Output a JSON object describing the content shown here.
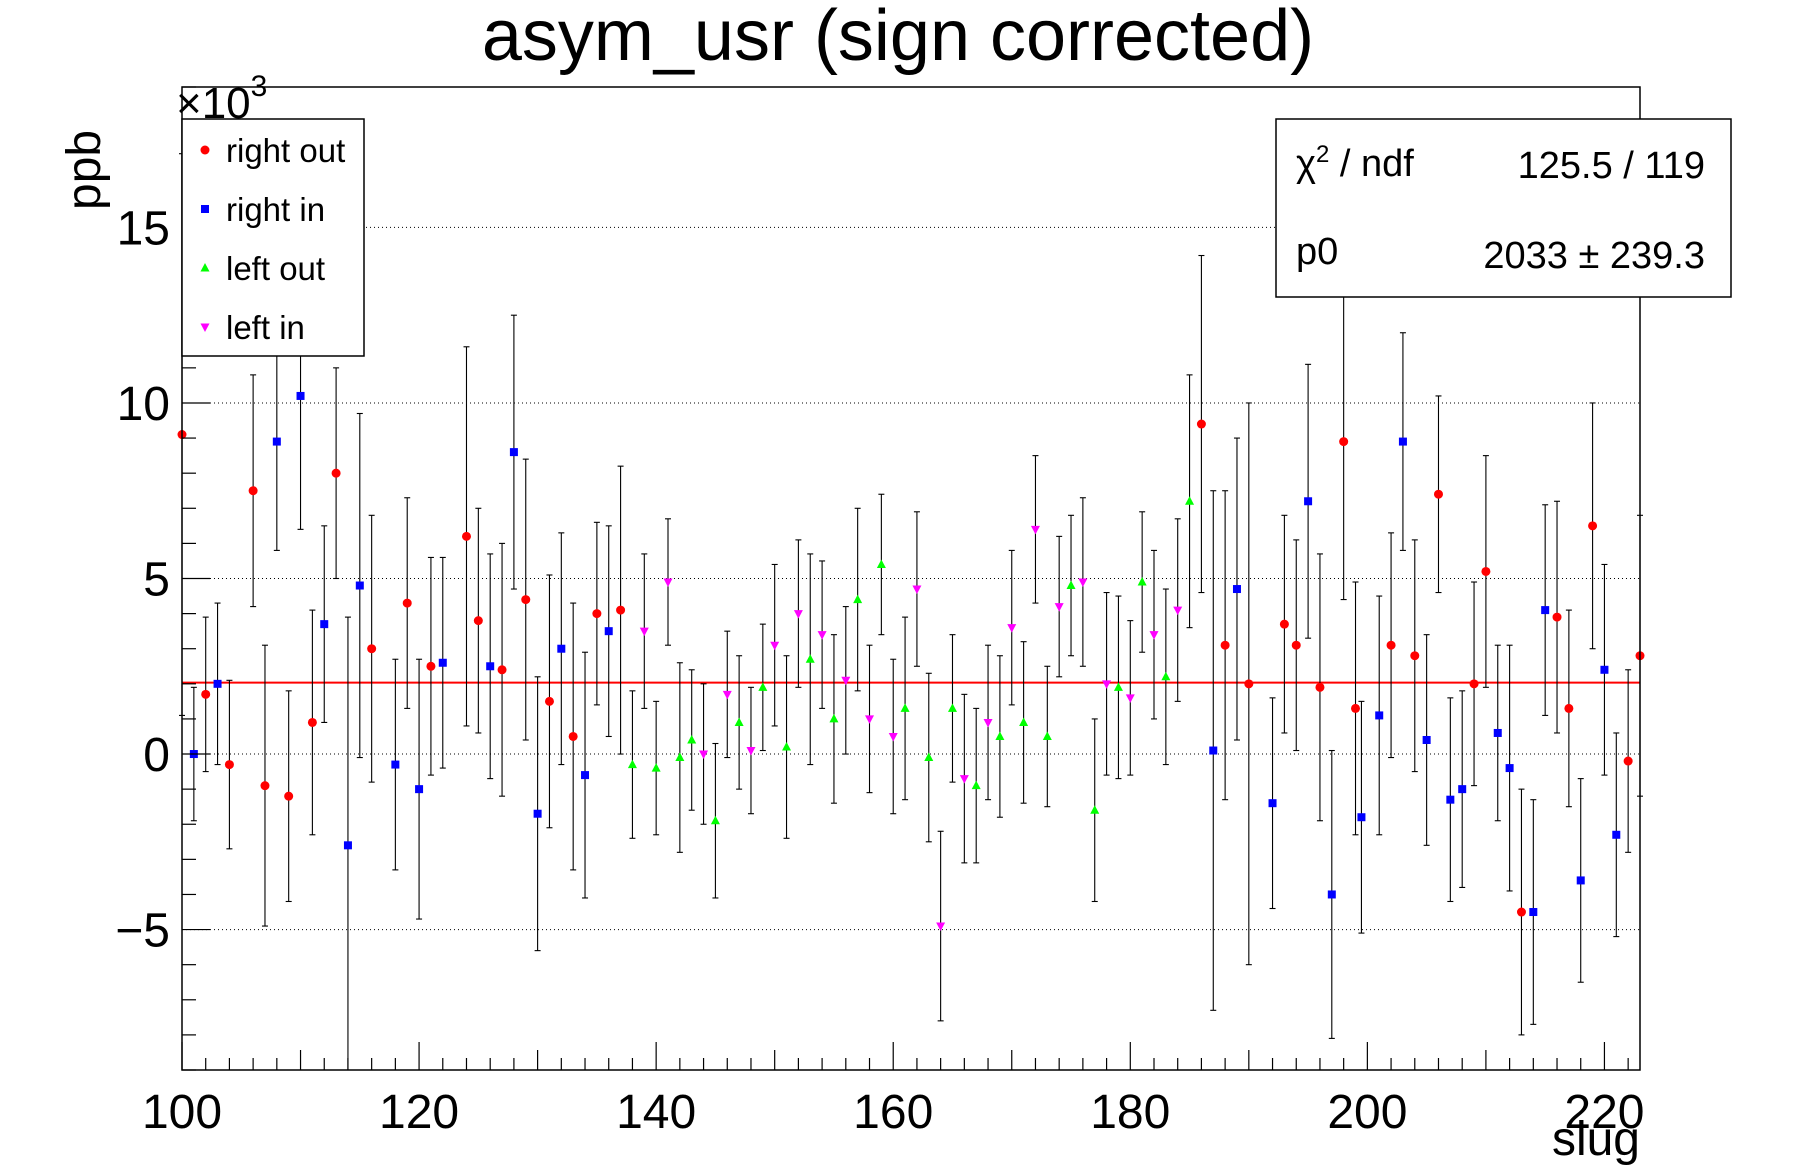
{
  "chart_data": {
    "type": "scatter",
    "title": "asym_usr (sign corrected)",
    "xlabel": "slug",
    "ylabel": "ppb",
    "y_multiplier": "×10",
    "y_multiplier_exp": "3",
    "xlim": [
      100,
      223
    ],
    "ylim": [
      -9,
      19
    ],
    "x_ticks": [
      100,
      120,
      140,
      160,
      180,
      200,
      220
    ],
    "y_ticks": [
      -5,
      0,
      5,
      10,
      15
    ],
    "y_tick_labels": [
      "−5",
      "0",
      "5",
      "10",
      "15"
    ],
    "grid": "horizontal dotted",
    "fit": {
      "value": 2.033,
      "color": "#ff0000"
    },
    "stats": {
      "chi2_label": "χ",
      "chi2_sup": "2",
      "chi2_rest": " / ndf",
      "chi2_value": "125.5 / 119",
      "p0_label": "p0",
      "p0_value": "2033 ± 239.3"
    },
    "legend_position": "top-left",
    "series": [
      {
        "name": "right out",
        "color": "#ff0000",
        "marker": "circle",
        "points": [
          [
            100,
            9.1,
            8.0
          ],
          [
            102,
            1.7,
            2.2
          ],
          [
            104,
            -0.3,
            2.4
          ],
          [
            106,
            7.5,
            3.3
          ],
          [
            107,
            -0.9,
            4.0
          ],
          [
            109,
            -1.2,
            3.0
          ],
          [
            111,
            0.9,
            3.2
          ],
          [
            113,
            8.0,
            3.0
          ],
          [
            116,
            3.0,
            3.8
          ],
          [
            119,
            4.3,
            3.0
          ],
          [
            121,
            2.5,
            3.1
          ],
          [
            124,
            6.2,
            5.4
          ],
          [
            125,
            3.8,
            3.2
          ],
          [
            127,
            2.4,
            3.6
          ],
          [
            129,
            4.4,
            4.0
          ],
          [
            131,
            1.5,
            3.6
          ],
          [
            133,
            0.5,
            3.8
          ],
          [
            135,
            4.0,
            2.6
          ],
          [
            137,
            4.1,
            4.1
          ],
          [
            186,
            9.4,
            4.8
          ],
          [
            188,
            3.1,
            4.4
          ],
          [
            190,
            2.0,
            8.0
          ],
          [
            193,
            3.7,
            3.1
          ],
          [
            194,
            3.1,
            3.0
          ],
          [
            196,
            1.9,
            3.8
          ],
          [
            198,
            8.9,
            4.5
          ],
          [
            199,
            1.3,
            3.6
          ],
          [
            202,
            3.1,
            3.2
          ],
          [
            204,
            2.8,
            3.3
          ],
          [
            206,
            7.4,
            2.8
          ],
          [
            209,
            2.0,
            2.9
          ],
          [
            210,
            5.2,
            3.3
          ],
          [
            213,
            -4.5,
            3.5
          ],
          [
            216,
            3.9,
            3.3
          ],
          [
            217,
            1.3,
            2.8
          ],
          [
            219,
            6.5,
            3.5
          ],
          [
            222,
            -0.2,
            2.6
          ],
          [
            223,
            2.8,
            4.0
          ]
        ]
      },
      {
        "name": "right in",
        "color": "#0000ff",
        "marker": "square",
        "points": [
          [
            101,
            0.0,
            1.9
          ],
          [
            103,
            2.0,
            2.3
          ],
          [
            108,
            8.9,
            3.1
          ],
          [
            110,
            10.2,
            3.8
          ],
          [
            112,
            3.7,
            2.8
          ],
          [
            114,
            -2.6,
            6.5
          ],
          [
            115,
            4.8,
            4.9
          ],
          [
            118,
            -0.3,
            3.0
          ],
          [
            120,
            -1.0,
            3.7
          ],
          [
            122,
            2.6,
            3.0
          ],
          [
            126,
            2.5,
            3.2
          ],
          [
            128,
            8.6,
            3.9
          ],
          [
            130,
            -1.7,
            3.9
          ],
          [
            132,
            3.0,
            3.3
          ],
          [
            134,
            -0.6,
            3.5
          ],
          [
            136,
            3.5,
            3.0
          ],
          [
            187,
            0.1,
            7.4
          ],
          [
            189,
            4.7,
            4.3
          ],
          [
            192,
            -1.4,
            3.0
          ],
          [
            195,
            7.2,
            3.9
          ],
          [
            197,
            -4.0,
            4.1
          ],
          [
            199.5,
            -1.8,
            3.3
          ],
          [
            201,
            1.1,
            3.4
          ],
          [
            203,
            8.9,
            3.1
          ],
          [
            205,
            0.4,
            3.0
          ],
          [
            207,
            -1.3,
            2.9
          ],
          [
            208,
            -1.0,
            2.8
          ],
          [
            211,
            0.6,
            2.5
          ],
          [
            212,
            -0.4,
            3.5
          ],
          [
            214,
            -4.5,
            3.2
          ],
          [
            215,
            4.1,
            3.0
          ],
          [
            218,
            -3.6,
            2.9
          ],
          [
            220,
            2.4,
            3.0
          ],
          [
            221,
            -2.3,
            2.9
          ]
        ]
      },
      {
        "name": "left out",
        "color": "#00ff00",
        "marker": "triangle-up",
        "points": [
          [
            138,
            -0.3,
            2.1
          ],
          [
            140,
            -0.4,
            1.9
          ],
          [
            142,
            -0.1,
            2.7
          ],
          [
            143,
            0.4,
            2.0
          ],
          [
            145,
            -1.9,
            2.2
          ],
          [
            147,
            0.9,
            1.9
          ],
          [
            149,
            1.9,
            1.8
          ],
          [
            151,
            0.2,
            2.6
          ],
          [
            153,
            2.7,
            3.0
          ],
          [
            155,
            1.0,
            2.4
          ],
          [
            157,
            4.4,
            2.6
          ],
          [
            159,
            5.4,
            2.0
          ],
          [
            161,
            1.3,
            2.6
          ],
          [
            163,
            -0.1,
            2.4
          ],
          [
            165,
            1.3,
            2.1
          ],
          [
            167,
            -0.9,
            2.2
          ],
          [
            169,
            0.5,
            2.3
          ],
          [
            171,
            0.9,
            2.3
          ],
          [
            173,
            0.5,
            2.0
          ],
          [
            175,
            4.8,
            2.0
          ],
          [
            177,
            -1.6,
            2.6
          ],
          [
            179,
            1.9,
            2.6
          ],
          [
            181,
            4.9,
            2.0
          ],
          [
            183,
            2.2,
            2.5
          ],
          [
            185,
            7.2,
            3.6
          ]
        ]
      },
      {
        "name": "left in",
        "color": "#ff00ff",
        "marker": "triangle-down",
        "points": [
          [
            139,
            3.5,
            2.2
          ],
          [
            141,
            4.9,
            1.8
          ],
          [
            144,
            0.0,
            2.0
          ],
          [
            146,
            1.7,
            1.8
          ],
          [
            148,
            0.1,
            1.8
          ],
          [
            150,
            3.1,
            2.3
          ],
          [
            152,
            4.0,
            2.1
          ],
          [
            154,
            3.4,
            2.1
          ],
          [
            156,
            2.1,
            2.1
          ],
          [
            158,
            1.0,
            2.1
          ],
          [
            160,
            0.5,
            2.2
          ],
          [
            162,
            4.7,
            2.2
          ],
          [
            164,
            -4.9,
            2.7
          ],
          [
            166,
            -0.7,
            2.4
          ],
          [
            168,
            0.9,
            2.2
          ],
          [
            170,
            3.6,
            2.2
          ],
          [
            172,
            6.4,
            2.1
          ],
          [
            174,
            4.2,
            2.0
          ],
          [
            176,
            4.9,
            2.4
          ],
          [
            178,
            2.0,
            2.6
          ],
          [
            180,
            1.6,
            2.2
          ],
          [
            182,
            3.4,
            2.4
          ],
          [
            184,
            4.1,
            2.6
          ]
        ]
      }
    ]
  }
}
